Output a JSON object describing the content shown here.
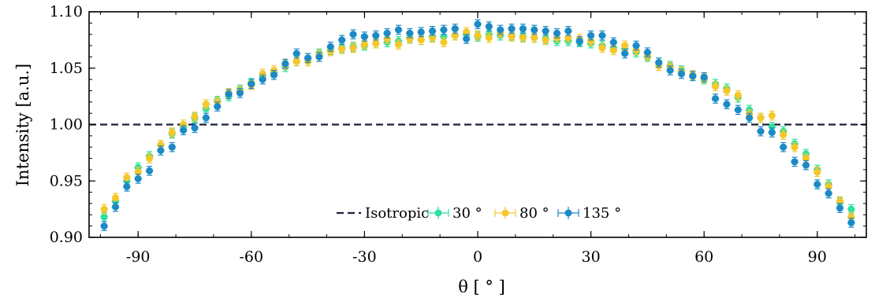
{
  "chart_data": {
    "type": "scatter",
    "xlabel": "θ [ ° ]",
    "ylabel": "Intensity [a.u.]",
    "xlim": [
      -103,
      103
    ],
    "ylim": [
      0.9,
      1.1
    ],
    "xticks": [
      -90,
      -60,
      -30,
      0,
      30,
      60,
      90
    ],
    "xtick_labels": [
      "-90",
      "-60",
      "-30",
      "0",
      "30",
      "60",
      "90"
    ],
    "yticks": [
      0.9,
      0.95,
      1.0,
      1.05,
      1.1
    ],
    "ytick_labels": [
      "0.90",
      "0.95",
      "1.00",
      "1.05",
      "1.10"
    ],
    "grid": false,
    "legend_position": "lower-center",
    "x": [
      -99,
      -96,
      -93,
      -90,
      -87,
      -84,
      -81,
      -78,
      -75,
      -72,
      -69,
      -66,
      -63,
      -60,
      -57,
      -54,
      -51,
      -48,
      -45,
      -42,
      -39,
      -36,
      -33,
      -30,
      -27,
      -24,
      -21,
      -18,
      -15,
      -12,
      -9,
      -6,
      -3,
      0,
      3,
      6,
      9,
      12,
      15,
      18,
      21,
      24,
      27,
      30,
      33,
      36,
      39,
      42,
      45,
      48,
      51,
      54,
      57,
      60,
      63,
      66,
      69,
      72,
      75,
      78,
      81,
      84,
      87,
      90,
      93,
      96,
      99
    ],
    "reference_line": {
      "name": "Isotropic",
      "y": 1.0,
      "color": "#1b1f3b"
    },
    "series": [
      {
        "name": "30 °",
        "color": "#2fe0a0",
        "values": [
          0.918,
          0.932,
          0.95,
          0.962,
          0.972,
          0.982,
          0.992,
          0.998,
          1.006,
          1.014,
          1.021,
          1.025,
          1.031,
          1.037,
          1.043,
          1.046,
          1.051,
          1.056,
          1.059,
          1.063,
          1.066,
          1.068,
          1.069,
          1.07,
          1.072,
          1.073,
          1.074,
          1.077,
          1.075,
          1.078,
          1.078,
          1.079,
          1.08,
          1.078,
          1.08,
          1.079,
          1.079,
          1.078,
          1.077,
          1.076,
          1.074,
          1.074,
          1.073,
          1.072,
          1.07,
          1.068,
          1.067,
          1.064,
          1.06,
          1.055,
          1.052,
          1.048,
          1.043,
          1.04,
          1.036,
          1.032,
          1.024,
          1.013,
          1.006,
          0.998,
          0.994,
          0.983,
          0.974,
          0.96,
          0.947,
          0.931,
          0.925
        ]
      },
      {
        "name": "80 °",
        "color": "#f7c628",
        "values": [
          0.925,
          0.935,
          0.953,
          0.958,
          0.97,
          0.982,
          0.993,
          1.0,
          1.007,
          1.018,
          1.02,
          1.028,
          1.03,
          1.035,
          1.045,
          1.048,
          1.053,
          1.056,
          1.056,
          1.062,
          1.065,
          1.067,
          1.068,
          1.071,
          1.072,
          1.076,
          1.071,
          1.076,
          1.075,
          1.077,
          1.073,
          1.079,
          1.082,
          1.079,
          1.077,
          1.081,
          1.078,
          1.077,
          1.077,
          1.075,
          1.077,
          1.077,
          1.076,
          1.074,
          1.068,
          1.066,
          1.07,
          1.066,
          1.061,
          1.052,
          1.051,
          1.047,
          1.044,
          1.041,
          1.034,
          1.03,
          1.026,
          1.009,
          1.006,
          1.008,
          0.991,
          0.98,
          0.97,
          0.958,
          0.945,
          0.932,
          0.918
        ]
      },
      {
        "name": "135 °",
        "color": "#1b8ac6",
        "values": [
          0.91,
          0.927,
          0.945,
          0.952,
          0.959,
          0.977,
          0.98,
          0.995,
          0.997,
          1.006,
          1.016,
          1.027,
          1.028,
          1.036,
          1.04,
          1.044,
          1.054,
          1.063,
          1.059,
          1.06,
          1.069,
          1.075,
          1.08,
          1.078,
          1.079,
          1.081,
          1.084,
          1.081,
          1.082,
          1.083,
          1.084,
          1.085,
          1.076,
          1.089,
          1.087,
          1.084,
          1.085,
          1.085,
          1.084,
          1.083,
          1.081,
          1.083,
          1.074,
          1.079,
          1.079,
          1.073,
          1.063,
          1.07,
          1.064,
          1.055,
          1.048,
          1.045,
          1.043,
          1.042,
          1.023,
          1.018,
          1.013,
          1.006,
          0.994,
          0.993,
          0.98,
          0.967,
          0.964,
          0.947,
          0.939,
          0.926,
          0.913
        ]
      }
    ],
    "y_error": 0.004,
    "x_error": 1.0
  }
}
